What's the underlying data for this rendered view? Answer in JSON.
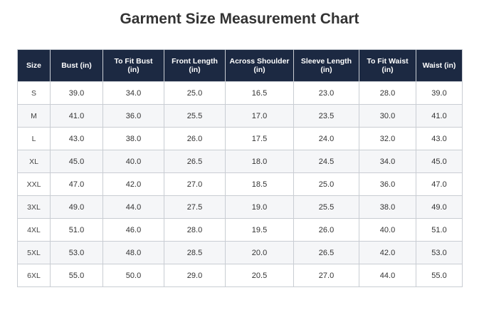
{
  "title": "Garment Size Measurement Chart",
  "colors": {
    "header_bg": "#1c2942",
    "header_text": "#ffffff",
    "border": "#c9cdd3",
    "alt_row": "#f5f6f8"
  },
  "table": {
    "headers": [
      [
        "Size"
      ],
      [
        "Bust (in)"
      ],
      [
        "To Fit Bust",
        "(in)"
      ],
      [
        "Front Length",
        "(in)"
      ],
      [
        "Across Shoulder",
        "(in)"
      ],
      [
        "Sleeve Length",
        "(in)"
      ],
      [
        "To Fit Waist",
        "(in)"
      ],
      [
        "Waist (in)"
      ]
    ],
    "rows": [
      [
        "S",
        "39.0",
        "34.0",
        "25.0",
        "16.5",
        "23.0",
        "28.0",
        "39.0"
      ],
      [
        "M",
        "41.0",
        "36.0",
        "25.5",
        "17.0",
        "23.5",
        "30.0",
        "41.0"
      ],
      [
        "L",
        "43.0",
        "38.0",
        "26.0",
        "17.5",
        "24.0",
        "32.0",
        "43.0"
      ],
      [
        "XL",
        "45.0",
        "40.0",
        "26.5",
        "18.0",
        "24.5",
        "34.0",
        "45.0"
      ],
      [
        "XXL",
        "47.0",
        "42.0",
        "27.0",
        "18.5",
        "25.0",
        "36.0",
        "47.0"
      ],
      [
        "3XL",
        "49.0",
        "44.0",
        "27.5",
        "19.0",
        "25.5",
        "38.0",
        "49.0"
      ],
      [
        "4XL",
        "51.0",
        "46.0",
        "28.0",
        "19.5",
        "26.0",
        "40.0",
        "51.0"
      ],
      [
        "5XL",
        "53.0",
        "48.0",
        "28.5",
        "20.0",
        "26.5",
        "42.0",
        "53.0"
      ],
      [
        "6XL",
        "55.0",
        "50.0",
        "29.0",
        "20.5",
        "27.0",
        "44.0",
        "55.0"
      ]
    ]
  }
}
